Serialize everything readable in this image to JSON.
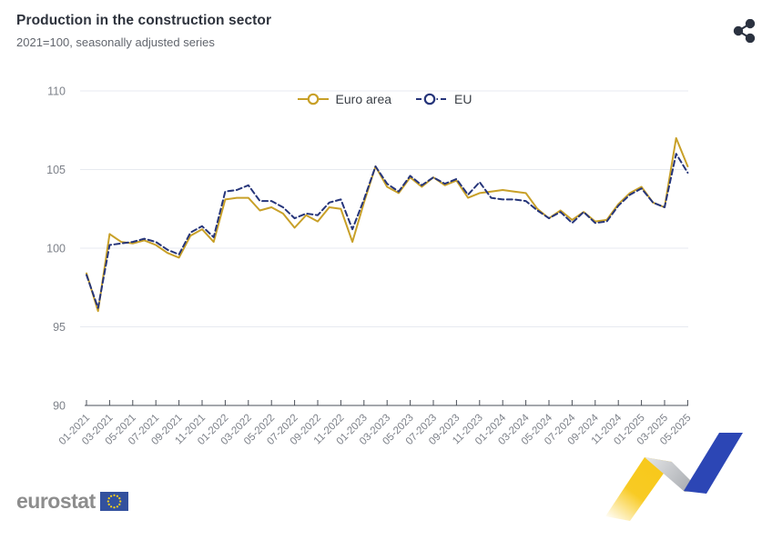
{
  "header": {
    "title": "Production in the construction sector",
    "subtitle": "2021=100, seasonally adjusted series"
  },
  "toolbar": {
    "share_icon": "share-icon"
  },
  "chart_data": {
    "type": "line",
    "title": "Production in the construction sector",
    "subtitle": "2021=100, seasonally adjusted series",
    "xlabel": "",
    "ylabel": "",
    "ylim": [
      90,
      110
    ],
    "yticks": [
      90,
      95,
      100,
      105,
      110
    ],
    "grid": true,
    "legend_position": "top-center",
    "x_tick_interval": 2,
    "x": [
      "01-2021",
      "02-2021",
      "03-2021",
      "04-2021",
      "05-2021",
      "06-2021",
      "07-2021",
      "08-2021",
      "09-2021",
      "10-2021",
      "11-2021",
      "12-2021",
      "01-2022",
      "02-2022",
      "03-2022",
      "04-2022",
      "05-2022",
      "06-2022",
      "07-2022",
      "08-2022",
      "09-2022",
      "10-2022",
      "11-2022",
      "12-2022",
      "01-2023",
      "02-2023",
      "03-2023",
      "04-2023",
      "05-2023",
      "06-2023",
      "07-2023",
      "08-2023",
      "09-2023",
      "10-2023",
      "11-2023",
      "12-2023",
      "01-2024",
      "02-2024",
      "03-2024",
      "04-2024",
      "05-2024",
      "06-2024",
      "07-2024",
      "08-2024",
      "09-2024",
      "10-2024",
      "11-2024",
      "12-2024",
      "01-2025",
      "02-2025",
      "03-2025",
      "04-2025",
      "05-2025"
    ],
    "x_tick_labels": [
      "01-2021",
      "03-2021",
      "05-2021",
      "07-2021",
      "09-2021",
      "11-2021",
      "01-2022",
      "03-2022",
      "05-2022",
      "07-2022",
      "09-2022",
      "11-2022",
      "01-2023",
      "03-2023",
      "05-2023",
      "07-2023",
      "09-2023",
      "11-2023",
      "01-2024",
      "03-2024",
      "05-2024",
      "07-2024",
      "09-2024",
      "11-2024",
      "01-2025",
      "03-2025",
      "05-2025"
    ],
    "series": [
      {
        "name": "Euro area",
        "color": "#C8A028",
        "dash": "solid",
        "values": [
          98.4,
          96.0,
          100.9,
          100.4,
          100.3,
          100.5,
          100.2,
          99.7,
          99.4,
          100.8,
          101.2,
          100.4,
          103.1,
          103.2,
          103.2,
          102.4,
          102.6,
          102.2,
          101.3,
          102.1,
          101.7,
          102.6,
          102.5,
          100.4,
          102.9,
          105.2,
          103.9,
          103.5,
          104.5,
          103.9,
          104.5,
          104.0,
          104.3,
          103.2,
          103.5,
          103.6,
          103.7,
          103.6,
          103.5,
          102.5,
          101.9,
          102.4,
          101.8,
          102.3,
          101.7,
          101.8,
          102.8,
          103.5,
          103.9,
          102.9,
          102.6,
          107.0,
          105.2
        ]
      },
      {
        "name": "EU",
        "color": "#26357A",
        "dash": "dashed",
        "values": [
          98.3,
          96.2,
          100.2,
          100.3,
          100.4,
          100.6,
          100.4,
          99.9,
          99.6,
          101.0,
          101.4,
          100.7,
          103.6,
          103.7,
          104.0,
          103.0,
          103.0,
          102.6,
          101.9,
          102.2,
          102.1,
          102.9,
          103.1,
          101.2,
          103.1,
          105.2,
          104.1,
          103.6,
          104.6,
          104.0,
          104.5,
          104.1,
          104.4,
          103.4,
          104.2,
          103.2,
          103.1,
          103.1,
          103.0,
          102.4,
          101.9,
          102.3,
          101.6,
          102.3,
          101.6,
          101.7,
          102.7,
          103.4,
          103.8,
          102.9,
          102.6,
          106.0,
          104.8
        ]
      }
    ]
  },
  "footer": {
    "logo_text": "eurostat"
  },
  "colors": {
    "title": "#2E333D",
    "subtitle": "#62666E",
    "axis_label": "#7D8189",
    "gridline": "#E7EAF0",
    "axis_line": "#4A4F58",
    "share_icon": "#2B3240",
    "logo_gray": "#8D8D8D",
    "flag_blue": "#33519E",
    "star_yellow": "#FFD617",
    "ribbon_yellow": "#F8C818",
    "ribbon_blue": "#2C46B5"
  }
}
